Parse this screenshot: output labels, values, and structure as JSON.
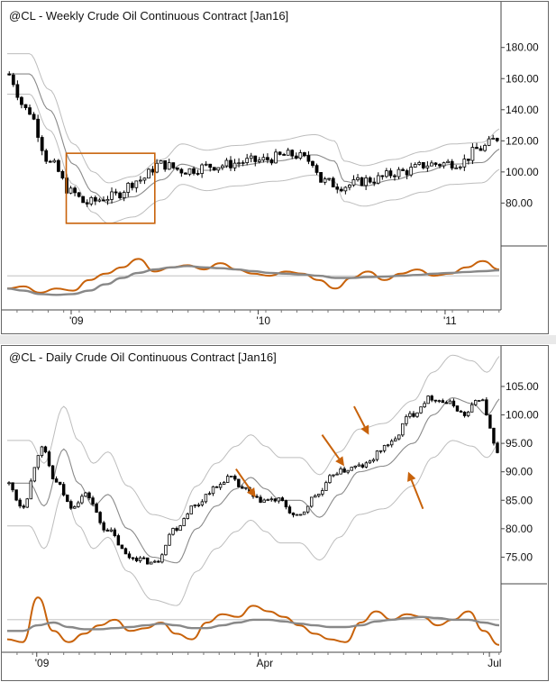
{
  "chart_data": [
    {
      "type": "candlestick",
      "title": "@CL - Weekly  Crude Oil Continuous Contract [Jan16]",
      "y_ticks": [
        "180.00",
        "160.00",
        "140.00",
        "120.00",
        "100.00",
        "80.00"
      ],
      "y_tick_values": [
        180,
        160,
        140,
        120,
        100,
        80
      ],
      "ylim": [
        53,
        192
      ],
      "x_ticks": [
        "'09",
        "'10",
        "'11"
      ],
      "x_tick_values": [
        0.13,
        0.51,
        0.89
      ],
      "bar_count": 120,
      "price_path": {
        "knots_x": [
          0.0,
          0.04,
          0.09,
          0.13,
          0.16,
          0.21,
          0.27,
          0.31,
          0.36,
          0.42,
          0.5,
          0.58,
          0.62,
          0.64,
          0.68,
          0.74,
          0.8,
          0.86,
          0.92,
          0.96,
          1.0
        ],
        "knots_y": [
          163,
          140,
          105,
          87,
          80,
          84,
          95,
          105,
          101,
          104,
          107,
          111,
          107,
          94,
          91,
          95,
          100,
          105,
          106,
          115,
          122
        ]
      },
      "bands": {
        "offset": 13
      },
      "oscillator": {
        "ylim": [
          0,
          1
        ],
        "series": [
          {
            "color": "#c8620a",
            "values": [
              0.25,
              0.3,
              0.15,
              0.25,
              0.2,
              0.45,
              0.6,
              0.75,
              0.95,
              0.65,
              0.75,
              0.8,
              0.7,
              0.85,
              0.7,
              0.6,
              0.55,
              0.65,
              0.6,
              0.45,
              0.25,
              0.5,
              0.65,
              0.45,
              0.6,
              0.7,
              0.55,
              0.6,
              0.75,
              0.9,
              0.7
            ]
          },
          {
            "color": "#888888",
            "values": [
              0.25,
              0.2,
              0.12,
              0.1,
              0.12,
              0.2,
              0.35,
              0.5,
              0.62,
              0.7,
              0.75,
              0.78,
              0.75,
              0.73,
              0.7,
              0.66,
              0.62,
              0.6,
              0.58,
              0.55,
              0.5,
              0.5,
              0.52,
              0.53,
              0.55,
              0.57,
              0.6,
              0.62,
              0.64,
              0.66,
              0.68
            ]
          }
        ]
      },
      "annotation": {
        "type": "rectangle",
        "color": "#c8620a",
        "x_range": [
          0.12,
          0.3
        ],
        "y_range": [
          67,
          112
        ]
      }
    },
    {
      "type": "candlestick",
      "title": "@CL - Daily  Crude Oil Continuous Contract [Jan16]",
      "y_ticks": [
        "105.00",
        "100.00",
        "95.00",
        "90.00",
        "85.00",
        "80.00",
        "75.00"
      ],
      "y_tick_values": [
        105,
        100,
        95,
        90,
        85,
        80,
        75
      ],
      "ylim": [
        70,
        108
      ],
      "x_ticks": [
        "'09",
        "Apr",
        "Jul"
      ],
      "x_tick_values": [
        0.06,
        0.51,
        0.98
      ],
      "bar_count": 135,
      "price_path": {
        "knots_x": [
          0.0,
          0.03,
          0.07,
          0.1,
          0.13,
          0.16,
          0.2,
          0.25,
          0.3,
          0.34,
          0.38,
          0.42,
          0.45,
          0.48,
          0.51,
          0.55,
          0.59,
          0.63,
          0.67,
          0.72,
          0.78,
          0.82,
          0.86,
          0.9,
          0.93,
          0.96,
          1.0
        ],
        "knots_y": [
          88,
          84,
          94,
          88,
          84,
          86,
          80,
          75,
          74,
          80,
          84,
          87,
          89,
          87,
          85,
          85,
          82,
          86,
          90,
          91,
          95,
          100,
          103,
          102,
          100,
          103,
          93
        ]
      },
      "bands": {
        "offset": 7.5
      },
      "oscillator": {
        "ylim": [
          0,
          1
        ],
        "series": [
          {
            "color": "#c8620a",
            "values": [
              0.2,
              0.15,
              0.95,
              0.35,
              0.15,
              0.3,
              0.45,
              0.55,
              0.35,
              0.4,
              0.5,
              0.3,
              0.2,
              0.5,
              0.65,
              0.6,
              0.8,
              0.7,
              0.6,
              0.45,
              0.3,
              0.2,
              0.15,
              0.5,
              0.7,
              0.55,
              0.65,
              0.6,
              0.45,
              0.55,
              0.7,
              0.35,
              0.1
            ]
          },
          {
            "color": "#888888",
            "values": [
              0.35,
              0.35,
              0.45,
              0.5,
              0.42,
              0.38,
              0.38,
              0.4,
              0.42,
              0.45,
              0.48,
              0.45,
              0.4,
              0.4,
              0.45,
              0.5,
              0.55,
              0.55,
              0.52,
              0.48,
              0.45,
              0.42,
              0.42,
              0.45,
              0.52,
              0.55,
              0.58,
              0.6,
              0.58,
              0.55,
              0.55,
              0.5,
              0.45
            ]
          }
        ]
      },
      "arrows": [
        {
          "from": [
            0.465,
            90.5
          ],
          "to": [
            0.505,
            85.5
          ],
          "color": "#c8620a"
        },
        {
          "from": [
            0.64,
            96.5
          ],
          "to": [
            0.685,
            91.0
          ],
          "color": "#c8620a"
        },
        {
          "from": [
            0.705,
            101.5
          ],
          "to": [
            0.735,
            96.5
          ],
          "color": "#c8620a"
        },
        {
          "from": [
            0.845,
            83.5
          ],
          "to": [
            0.815,
            90.0
          ],
          "color": "#c8620a"
        }
      ]
    }
  ]
}
